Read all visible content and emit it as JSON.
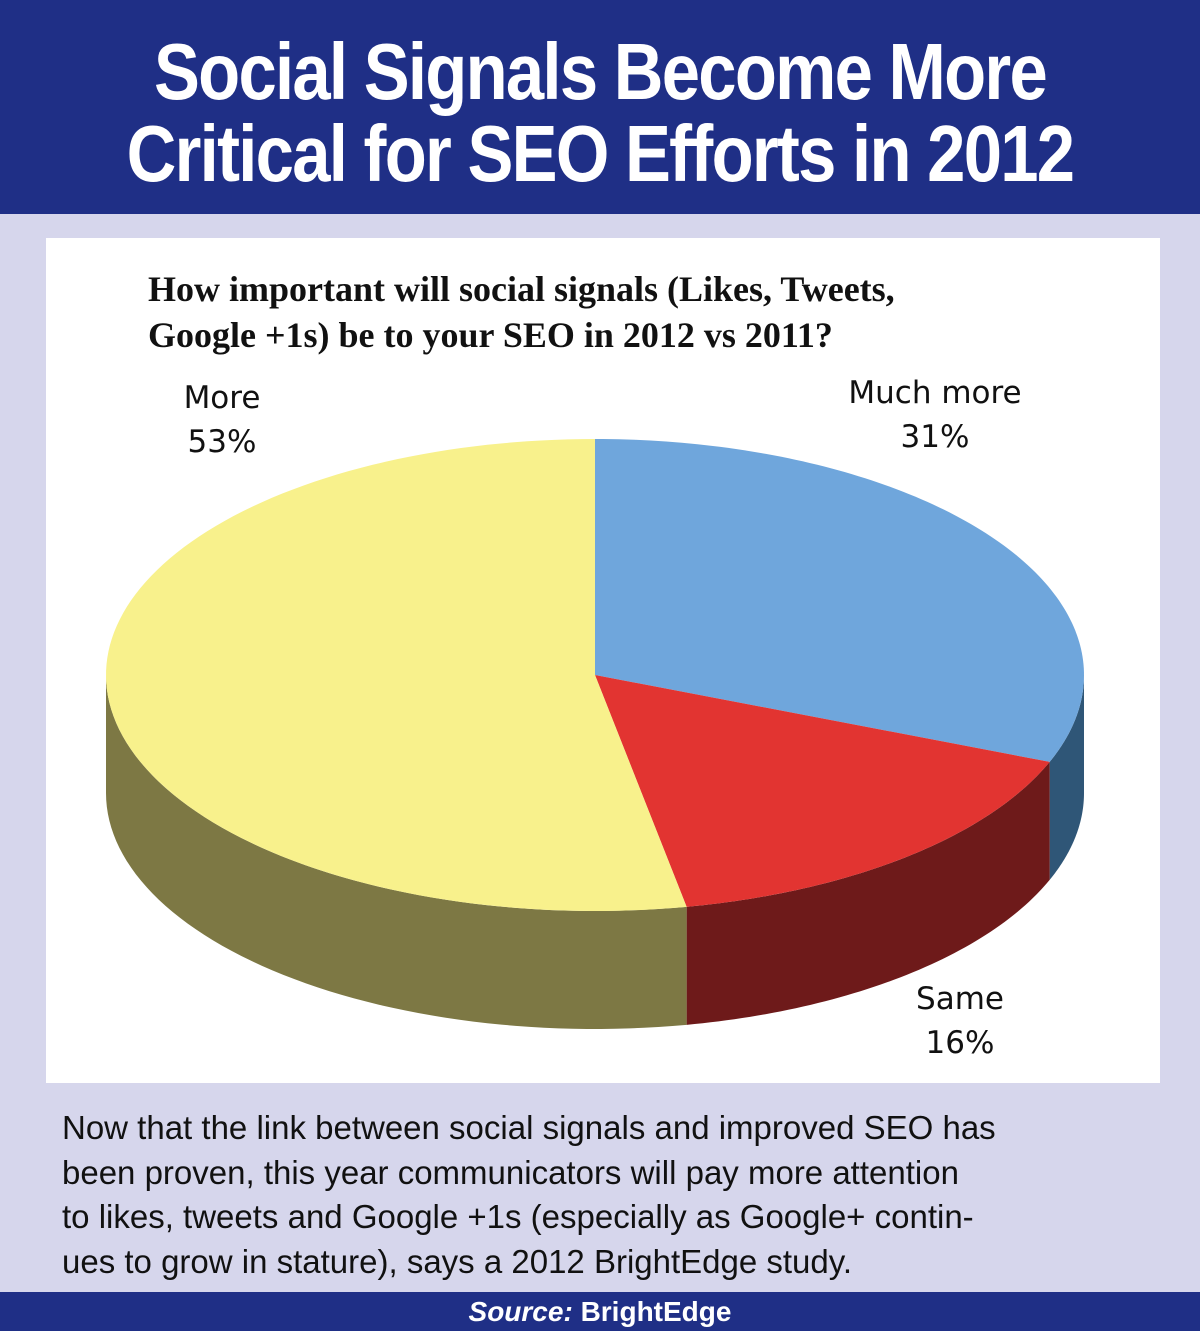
{
  "header": {
    "title_line1": "Social Signals Become More",
    "title_line2": "Critical for SEO Efforts in 2012"
  },
  "question": {
    "line1": "How important will social signals (Likes, Tweets,",
    "line2": "Google +1s) be to your SEO in 2012 vs 2011?"
  },
  "chart_data": {
    "type": "pie",
    "title": "How important will social signals (Likes, Tweets, Google +1s) be to your SEO in 2012 vs 2011?",
    "style": "3d",
    "slices": [
      {
        "label": "Much more",
        "value": 31,
        "display": "31%",
        "color": "#6fa6dc",
        "side_color": "#2f5677"
      },
      {
        "label": "Same",
        "value": 16,
        "display": "16%",
        "color": "#e23431",
        "side_color": "#6e1a1a"
      },
      {
        "label": "More",
        "value": 53,
        "display": "53%",
        "color": "#f8f18c",
        "side_color": "#7d7844"
      }
    ]
  },
  "caption": {
    "line1": "Now that the link between social signals and improved SEO has",
    "line2": "been proven, this year communicators will pay more attention",
    "line3": "to likes, tweets and Google +1s (especially as Google+ contin-",
    "line4": "ues to grow in stature), says a 2012 BrightEdge study."
  },
  "footer": {
    "source_label": "Source:",
    "source_name": "BrightEdge"
  }
}
